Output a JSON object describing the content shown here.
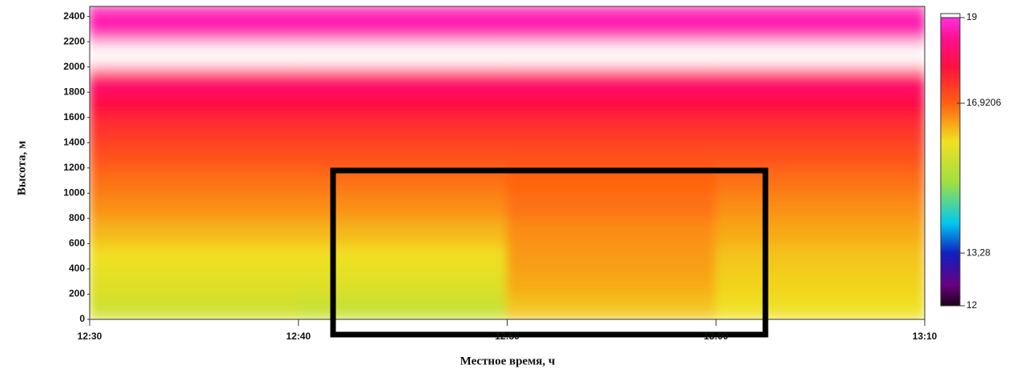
{
  "chart_data": {
    "type": "heatmap",
    "xlabel": "Местное время, ч",
    "ylabel": "Высота, м",
    "xbins": [
      "12:30",
      "12:40",
      "12:50",
      "13:00",
      "13:10"
    ],
    "ybins": [
      0,
      200,
      400,
      600,
      800,
      1000,
      1200,
      1400,
      1600,
      1800,
      2000,
      2200,
      2480
    ],
    "ylim": [
      0,
      2480
    ],
    "yticks": [
      0,
      200,
      400,
      600,
      800,
      1000,
      1200,
      1400,
      1600,
      1800,
      2000,
      2200,
      2400
    ],
    "z": [
      [
        15.6,
        15.5,
        16.2,
        16.0
      ],
      [
        15.8,
        15.8,
        16.4,
        16.1
      ],
      [
        16.0,
        16.0,
        16.5,
        16.2
      ],
      [
        16.3,
        16.3,
        16.6,
        16.4
      ],
      [
        16.6,
        16.6,
        16.8,
        16.6
      ],
      [
        16.8,
        16.8,
        16.9,
        16.8
      ],
      [
        17.1,
        17.1,
        17.1,
        17.1
      ],
      [
        17.4,
        17.4,
        17.4,
        17.4
      ],
      [
        17.8,
        17.8,
        17.8,
        17.8
      ],
      [
        18.2,
        18.2,
        18.2,
        18.2
      ],
      [
        19.5,
        19.5,
        19.5,
        19.5
      ],
      [
        18.7,
        18.7,
        18.7,
        18.7
      ]
    ],
    "clim": [
      12,
      19
    ],
    "cticks": [
      19,
      {
        "value": 16.9206,
        "label": "16,9206"
      },
      {
        "value": 13.28,
        "label": "13,28"
      },
      12
    ],
    "colorscale": [
      [
        12,
        "#1a001a"
      ],
      [
        12.5,
        "#6a0080"
      ],
      [
        13.28,
        "#1020c0"
      ],
      [
        14,
        "#00c8f0"
      ],
      [
        15,
        "#a0e040"
      ],
      [
        16,
        "#f0e020"
      ],
      [
        16.9206,
        "#ff6010"
      ],
      [
        17.8,
        "#ff1040"
      ],
      [
        18.5,
        "#ff1090"
      ],
      [
        19,
        "#ff30e0"
      ]
    ],
    "over_color": "#ffffff"
  }
}
